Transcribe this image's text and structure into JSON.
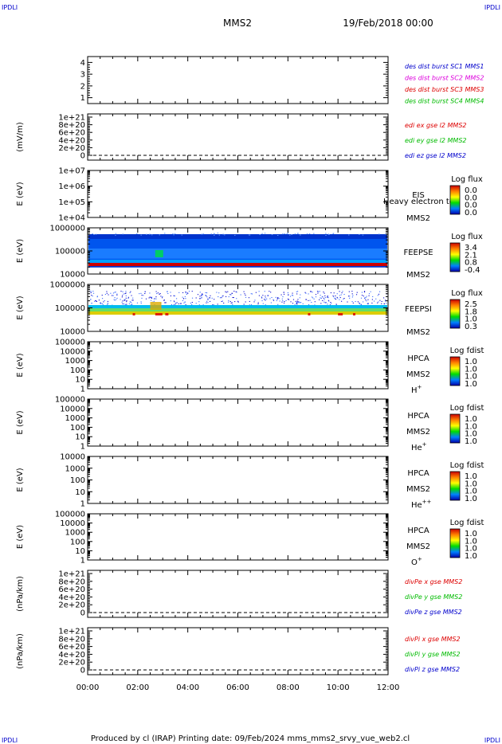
{
  "corner_labels": {
    "tl": "IPDLI",
    "tr": "IPDLI",
    "bl": "IPDLI",
    "br": "IPDLI"
  },
  "header": {
    "mission": "MMS2",
    "datetime": "19/Feb/2018 00:00"
  },
  "footer": {
    "text": "Produced by cl (IRAP)   Printing date: 09/Feb/2024   mms_mms2_srvy_vue_web2.cl"
  },
  "colors": {
    "red": "#dd0000",
    "green": "#00bb00",
    "blue": "#0000cc",
    "magenta": "#dd00dd"
  },
  "chart_data": {
    "type": "multi-panel time series and spectrograms",
    "x": {
      "ticks": [
        "00:00",
        "02:00",
        "04:00",
        "06:00",
        "08:00",
        "10:00",
        "12:00"
      ],
      "range_hours": [
        0,
        12
      ]
    },
    "panels": [
      {
        "id": "sc",
        "type": "line",
        "ylim": [
          0.5,
          4.5
        ],
        "yticks": [
          "1",
          "2",
          "3",
          "4"
        ],
        "ylabel": "",
        "legend": [
          {
            "text": "des dist burst SC1 MMS1",
            "color": "#0000cc"
          },
          {
            "text": "des dist burst SC2 MMS2",
            "color": "#dd00dd"
          },
          {
            "text": "des dist burst SC3 MMS3",
            "color": "#dd0000"
          },
          {
            "text": "des dist burst SC4 MMS4",
            "color": "#00bb00"
          }
        ]
      },
      {
        "id": "edi",
        "type": "line",
        "ylabel": "(mV/m)",
        "yticks": [
          "0",
          "2e+20",
          "4e+20",
          "6e+20",
          "8e+20",
          "1e+21"
        ],
        "dashed_zero": true,
        "legend": [
          {
            "text": "edi ex gse l2 MMS2",
            "color": "#dd0000"
          },
          {
            "text": "edi ey gse l2 MMS2",
            "color": "#00bb00"
          },
          {
            "text": "edi ez gse l2 MMS2",
            "color": "#0000cc"
          }
        ]
      },
      {
        "id": "eis",
        "type": "heatmap",
        "ylabel": "E (eV)",
        "yticks": [
          "1e+04",
          "1e+05",
          "1e+06",
          "1e+07"
        ],
        "log": true,
        "labels": [
          "EIS",
          "MMS2"
        ],
        "overlay": "Heavy electron tot",
        "colorbar": {
          "title": "Log flux",
          "ticks": [
            "0.0",
            "0.0",
            "0.0",
            "0.0"
          ]
        }
      },
      {
        "id": "feepse",
        "type": "heatmap",
        "ylabel": "E (eV)",
        "yticks": [
          "10000",
          "100000",
          "1000000"
        ],
        "log": true,
        "labels": [
          "FEEPSE",
          "MMS2"
        ],
        "colorbar": {
          "title": "Log flux",
          "ticks": [
            "3.4",
            "2.1",
            "0.8",
            "-0.4"
          ]
        }
      },
      {
        "id": "feepsi",
        "type": "heatmap",
        "ylabel": "E (eV)",
        "yticks": [
          "10000",
          "100000",
          "1000000"
        ],
        "log": true,
        "labels": [
          "FEEPSI",
          "MMS2"
        ],
        "colorbar": {
          "title": "Log flux",
          "ticks": [
            "2.5",
            "1.8",
            "1.0",
            "0.3"
          ]
        }
      },
      {
        "id": "hpca_h",
        "type": "heatmap",
        "ylabel": "E (eV)",
        "yticks": [
          "1",
          "10",
          "100",
          "1000",
          "10000",
          "100000"
        ],
        "log": true,
        "labels": [
          "HPCA",
          "MMS2"
        ],
        "species": "H",
        "charge": "+",
        "colorbar": {
          "title": "Log fdist",
          "ticks": [
            "1.0",
            "1.0",
            "1.0",
            "1.0"
          ]
        }
      },
      {
        "id": "hpca_he",
        "type": "heatmap",
        "ylabel": "E (eV)",
        "yticks": [
          "1",
          "10",
          "100",
          "1000",
          "10000",
          "100000"
        ],
        "log": true,
        "labels": [
          "HPCA",
          "MMS2"
        ],
        "species": "He",
        "charge": "+",
        "colorbar": {
          "title": "Log fdist",
          "ticks": [
            "1.0",
            "1.0",
            "1.0",
            "1.0"
          ]
        }
      },
      {
        "id": "hpca_he2",
        "type": "heatmap",
        "ylabel": "E (eV)",
        "yticks": [
          "1",
          "10",
          "100",
          "1000",
          "10000"
        ],
        "log": true,
        "labels": [
          "HPCA",
          "MMS2"
        ],
        "species": "He",
        "charge": "++",
        "colorbar": {
          "title": "Log fdist",
          "ticks": [
            "1.0",
            "1.0",
            "1.0",
            "1.0"
          ]
        }
      },
      {
        "id": "hpca_o",
        "type": "heatmap",
        "ylabel": "E (eV)",
        "yticks": [
          "1",
          "10",
          "100",
          "1000",
          "10000",
          "100000"
        ],
        "log": true,
        "labels": [
          "HPCA",
          "MMS2"
        ],
        "species": "O",
        "charge": "+",
        "colorbar": {
          "title": "Log fdist",
          "ticks": [
            "1.0",
            "1.0",
            "1.0",
            "1.0"
          ]
        }
      },
      {
        "id": "divpe",
        "type": "line",
        "ylabel": "(nPa/km)",
        "yticks": [
          "0",
          "2e+20",
          "4e+20",
          "6e+20",
          "8e+20",
          "1e+21"
        ],
        "dashed_zero": true,
        "legend": [
          {
            "text": "divPe x gse MMS2",
            "color": "#dd0000"
          },
          {
            "text": "divPe y gse MMS2",
            "color": "#00bb00"
          },
          {
            "text": "divPe z gse MMS2",
            "color": "#0000cc"
          }
        ]
      },
      {
        "id": "divpi",
        "type": "line",
        "ylabel": "(nPa/km)",
        "yticks": [
          "0",
          "2e+20",
          "4e+20",
          "6e+20",
          "8e+20",
          "1e+21"
        ],
        "dashed_zero": true,
        "legend": [
          {
            "text": "divPi x gse MMS2",
            "color": "#dd0000"
          },
          {
            "text": "divPi y gse MMS2",
            "color": "#00bb00"
          },
          {
            "text": "divPi z gse MMS2",
            "color": "#0000cc"
          }
        ]
      }
    ]
  }
}
